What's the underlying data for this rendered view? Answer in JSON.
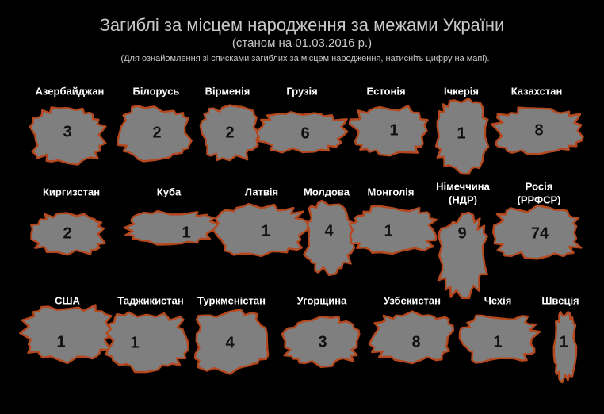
{
  "header": {
    "title": "Загиблі за місцем народження за межами України",
    "subtitle": "(станом на 01.03.2016 р.)",
    "note": "(Для ознайомлення зі списками загиблих за місцем народження, натисніть цифру на мапі)."
  },
  "countries": [
    {
      "name": "Азербайджан",
      "count": 3
    },
    {
      "name": "Білорусь",
      "count": 2
    },
    {
      "name": "Вірменія",
      "count": 2
    },
    {
      "name": "Грузія",
      "count": 6
    },
    {
      "name": "Естонія",
      "count": 1
    },
    {
      "name": "Ічкерія",
      "count": 1
    },
    {
      "name": "Казахстан",
      "count": 8
    },
    {
      "name": "Киргизстан",
      "count": 2
    },
    {
      "name": "Куба",
      "count": 1
    },
    {
      "name": "Латвія",
      "count": 1
    },
    {
      "name": "Молдова",
      "count": 4
    },
    {
      "name": "Монголія",
      "count": 1
    },
    {
      "name": [
        "Німеччина",
        "(НДР)"
      ],
      "count": 9
    },
    {
      "name": [
        "Росія",
        "(РРФСР)"
      ],
      "count": 74
    },
    {
      "name": "США",
      "count": 1
    },
    {
      "name": "Таджикистан",
      "count": 1
    },
    {
      "name": "Туркменістан",
      "count": 4
    },
    {
      "name": "Угорщина",
      "count": 3
    },
    {
      "name": "Узбекистан",
      "count": 8
    },
    {
      "name": "Чехія",
      "count": 1
    },
    {
      "name": "Швеція",
      "count": 1
    }
  ]
}
